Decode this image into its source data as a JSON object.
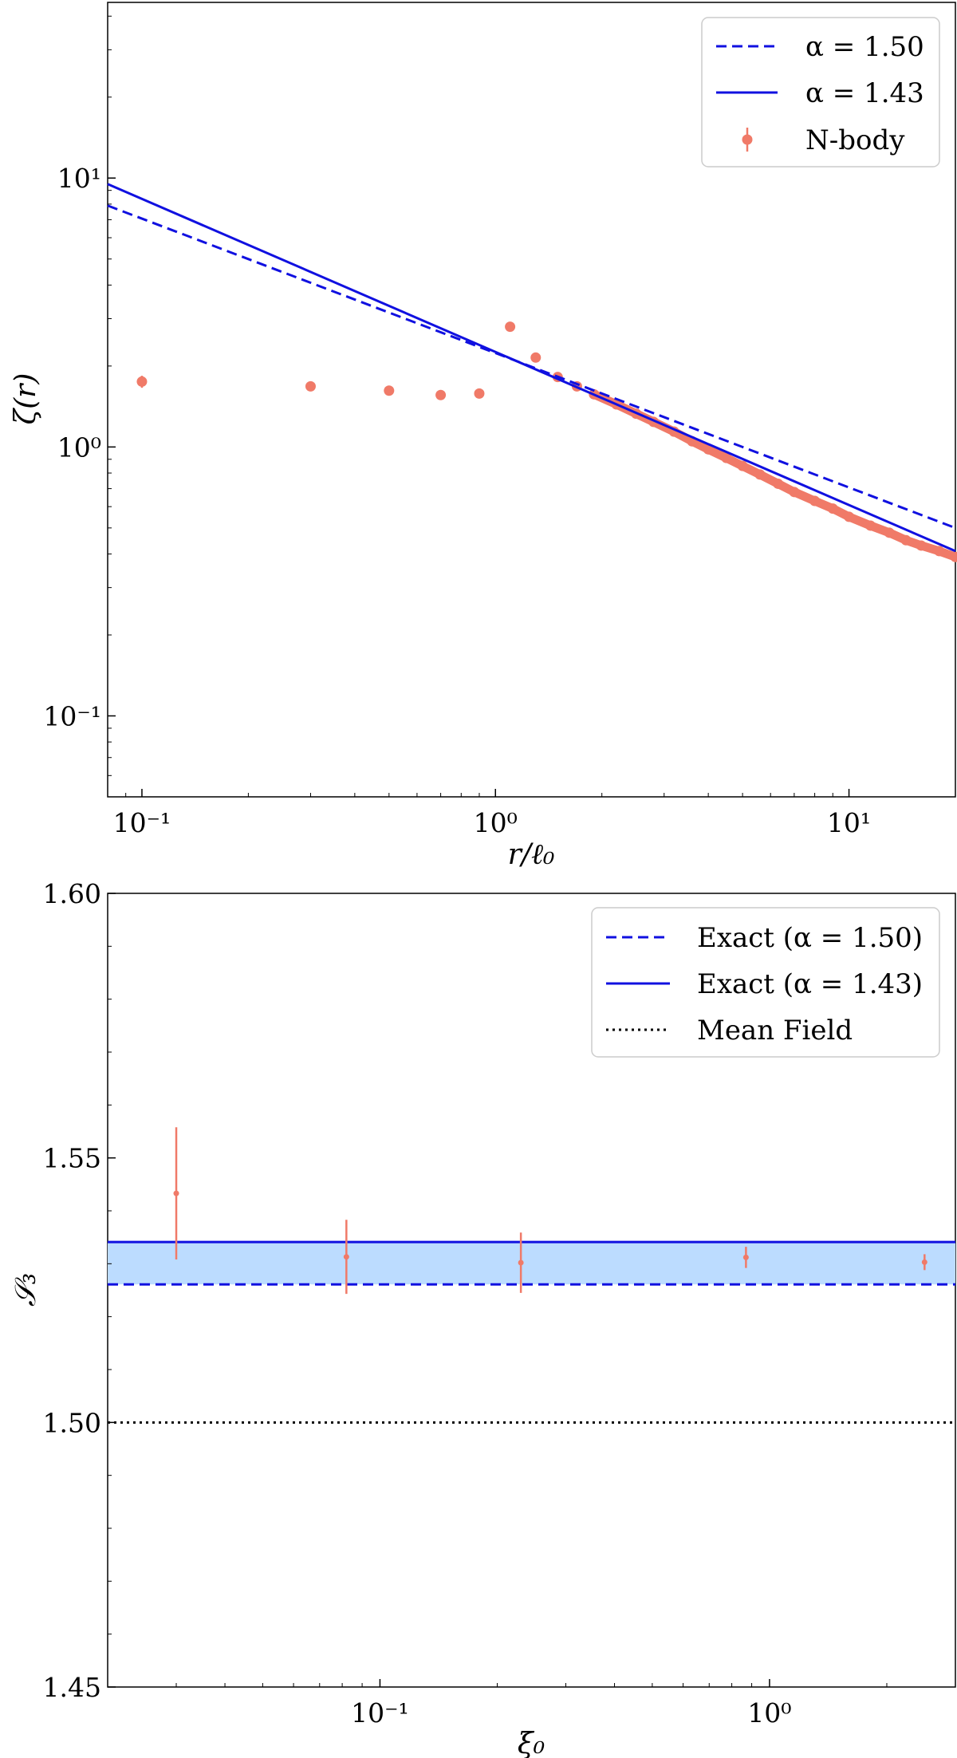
{
  "chart_data": [
    {
      "type": "line",
      "xlabel": "r/ℓ₀",
      "ylabel": "ζ(r)",
      "xscale": "log",
      "yscale": "log",
      "xlim": [
        0.08,
        20
      ],
      "ylim": [
        0.05,
        45
      ],
      "x_ticks": [
        {
          "value": 0.1,
          "label": "10⁻¹"
        },
        {
          "value": 1,
          "label": "10⁰"
        },
        {
          "value": 10,
          "label": "10¹"
        }
      ],
      "y_ticks": [
        {
          "value": 0.1,
          "label": "10⁻¹"
        },
        {
          "value": 1,
          "label": "10⁰"
        },
        {
          "value": 10,
          "label": "10¹"
        }
      ],
      "legend_position": "top-right",
      "series": [
        {
          "name": "α = 1.50",
          "style": "dashed",
          "color": "#1010e0",
          "x": [
            0.08,
            20
          ],
          "y": [
            7.9,
            0.5
          ]
        },
        {
          "name": "α = 1.43",
          "style": "solid",
          "color": "#1010e0",
          "x": [
            0.08,
            20
          ],
          "y": [
            9.5,
            0.41
          ]
        },
        {
          "name": "N-body",
          "style": "points",
          "color": "#f07a68",
          "x": [
            0.1,
            0.3,
            0.5,
            0.7,
            0.9,
            1.1,
            1.3,
            1.5,
            1.7,
            1.9,
            2.2,
            2.5,
            2.8,
            3.2,
            3.6,
            4.0,
            4.5,
            5.0,
            5.6,
            6.3,
            7.0,
            8.0,
            9.0,
            10.0,
            11.5,
            13.0,
            14.5,
            16.0,
            18.0,
            20.0
          ],
          "y": [
            1.75,
            1.68,
            1.62,
            1.56,
            1.58,
            2.8,
            2.15,
            1.82,
            1.68,
            1.57,
            1.44,
            1.33,
            1.24,
            1.14,
            1.05,
            0.98,
            0.91,
            0.85,
            0.79,
            0.73,
            0.68,
            0.63,
            0.59,
            0.55,
            0.51,
            0.48,
            0.45,
            0.43,
            0.41,
            0.39
          ],
          "yerr": [
            0.09,
            0.03,
            0.03,
            0.03,
            0.03,
            0.03,
            0.03,
            0.02,
            0.02,
            0.02,
            0.02,
            0.02,
            0.02,
            0.02,
            0.02,
            0.01,
            0.01,
            0.01,
            0.01,
            0.01,
            0.01,
            0.01,
            0.01,
            0.01,
            0.01,
            0.01,
            0.01,
            0.01,
            0.01,
            0.01
          ]
        }
      ]
    },
    {
      "type": "line",
      "xlabel": "ξ₀",
      "ylabel": "𝒮₃",
      "xscale": "log",
      "yscale": "linear",
      "xlim": [
        0.02,
        3
      ],
      "ylim": [
        1.45,
        1.6
      ],
      "x_ticks": [
        {
          "value": 0.1,
          "label": "10⁻¹"
        },
        {
          "value": 1,
          "label": "10⁰"
        }
      ],
      "y_ticks": [
        {
          "value": 1.45,
          "label": "1.45"
        },
        {
          "value": 1.5,
          "label": "1.50"
        },
        {
          "value": 1.55,
          "label": "1.55"
        },
        {
          "value": 1.6,
          "label": "1.60"
        }
      ],
      "band": {
        "from": 1.5261,
        "to": 1.5341,
        "color": "#bcdcff"
      },
      "legend_position": "top-right",
      "series": [
        {
          "name": "Exact (α = 1.50)",
          "style": "dashed",
          "color": "#1010e0",
          "y_const": 1.5261
        },
        {
          "name": "Exact (α = 1.43)",
          "style": "solid",
          "color": "#1010e0",
          "y_const": 1.5341
        },
        {
          "name": "Mean Field",
          "style": "dotted",
          "color": "#000000",
          "y_const": 1.5
        },
        {
          "name": "",
          "style": "points",
          "color": "#f07a68",
          "x": [
            0.03,
            0.082,
            0.23,
            0.87,
            2.5
          ],
          "y": [
            1.5433,
            1.5313,
            1.5302,
            1.5312,
            1.5303
          ],
          "yerr": [
            0.0125,
            0.007,
            0.0057,
            0.002,
            0.0015
          ]
        }
      ]
    }
  ]
}
